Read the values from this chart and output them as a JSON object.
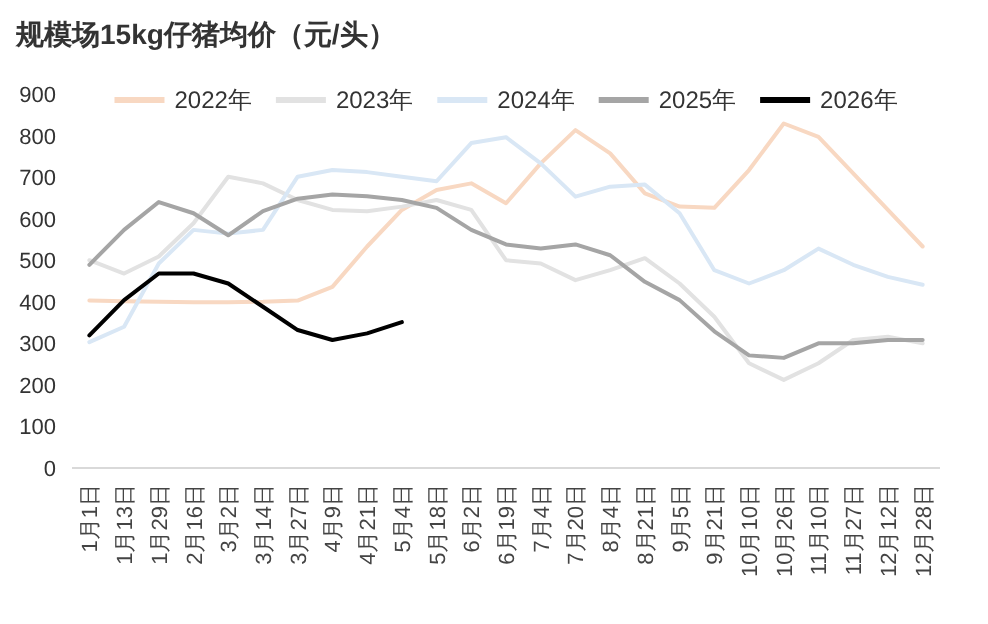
{
  "chart_data": {
    "type": "line",
    "title": "规模场15kg仔猪均价（元/头）",
    "categories": [
      "1月1日",
      "1月13日",
      "1月29日",
      "2月16日",
      "3月2日",
      "3月14日",
      "3月27日",
      "4月9日",
      "4月21日",
      "5月4日",
      "5月18日",
      "6月2日",
      "6月19日",
      "7月4日",
      "7月20日",
      "8月4日",
      "8月21日",
      "9月5日",
      "9月21日",
      "10月10日",
      "10月26日",
      "11月10日",
      "11月27日",
      "12月12日",
      "12月28日"
    ],
    "series": [
      {
        "name": "2022年",
        "color": "#f8d8c2",
        "values": [
          403,
          401,
          400,
          399,
          399,
          400,
          403,
          436,
          533,
          621,
          669,
          685,
          637,
          733,
          813,
          757,
          661,
          629,
          626,
          717,
          829,
          797,
          709,
          621,
          533
        ]
      },
      {
        "name": "2023年",
        "color": "#e2e2e2",
        "values": [
          500,
          468,
          509,
          589,
          701,
          685,
          645,
          621,
          618,
          629,
          645,
          621,
          500,
          492,
          452,
          476,
          505,
          444,
          364,
          252,
          212,
          252,
          308,
          316,
          300
        ]
      },
      {
        "name": "2024年",
        "color": "#d9e7f5",
        "values": [
          303,
          340,
          492,
          573,
          564,
          573,
          701,
          717,
          712,
          701,
          690,
          782,
          796,
          733,
          653,
          677,
          682,
          613,
          476,
          444,
          476,
          528,
          489,
          460,
          441
        ]
      },
      {
        "name": "2025年",
        "color": "#a5a5a5",
        "values": [
          489,
          573,
          640,
          613,
          560,
          618,
          648,
          658,
          654,
          645,
          626,
          573,
          538,
          528,
          538,
          512,
          448,
          404,
          329,
          271,
          265,
          300,
          300,
          308,
          308
        ]
      },
      {
        "name": "2026年",
        "color": "#000000",
        "values": [
          319,
          404,
          468,
          468,
          444,
          388,
          332,
          308,
          324,
          351,
          null,
          null,
          null,
          null,
          null,
          null,
          null,
          null,
          null,
          null,
          null,
          null,
          null,
          null,
          null
        ]
      }
    ],
    "ylim": [
      0,
      900
    ],
    "yticks": [
      0,
      100,
      200,
      300,
      400,
      500,
      600,
      700,
      800,
      900
    ],
    "legend": "top"
  }
}
